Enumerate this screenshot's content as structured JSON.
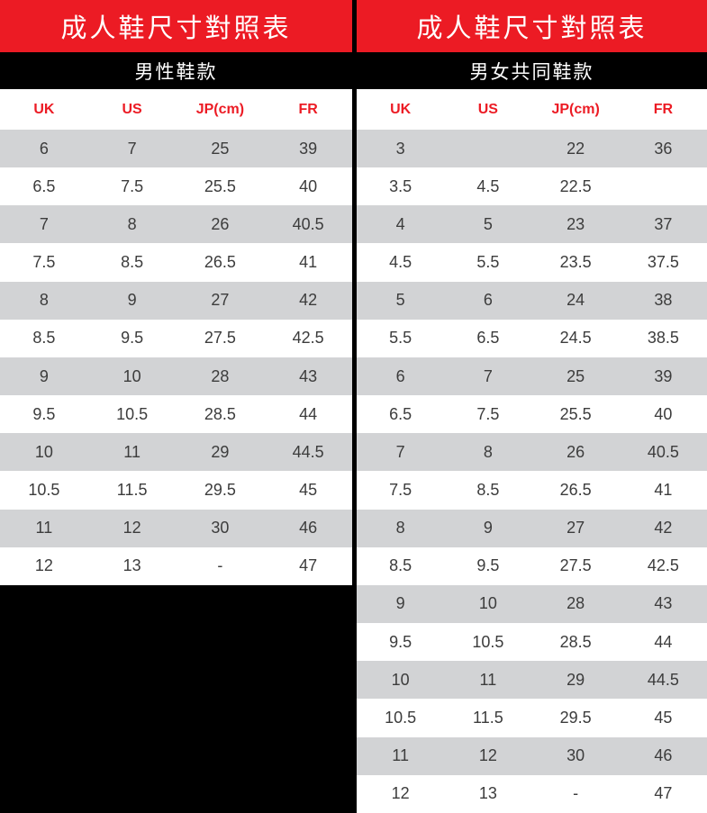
{
  "colors": {
    "accent_red": "#EC1B24",
    "row_gray": "#D2D3D5",
    "band_black": "#000000",
    "cell_text": "#3c3c3c"
  },
  "chart_data": [
    {
      "type": "table",
      "title": "成人鞋尺寸對照表",
      "subtitle": "男性鞋款",
      "columns": [
        "UK",
        "US",
        "JP(cm)",
        "FR"
      ],
      "rows": [
        [
          "6",
          "7",
          "25",
          "39"
        ],
        [
          "6.5",
          "7.5",
          "25.5",
          "40"
        ],
        [
          "7",
          "8",
          "26",
          "40.5"
        ],
        [
          "7.5",
          "8.5",
          "26.5",
          "41"
        ],
        [
          "8",
          "9",
          "27",
          "42"
        ],
        [
          "8.5",
          "9.5",
          "27.5",
          "42.5"
        ],
        [
          "9",
          "10",
          "28",
          "43"
        ],
        [
          "9.5",
          "10.5",
          "28.5",
          "44"
        ],
        [
          "10",
          "11",
          "29",
          "44.5"
        ],
        [
          "10.5",
          "11.5",
          "29.5",
          "45"
        ],
        [
          "11",
          "12",
          "30",
          "46"
        ],
        [
          "12",
          "13",
          "-",
          "47"
        ]
      ]
    },
    {
      "type": "table",
      "title": "成人鞋尺寸對照表",
      "subtitle": "男女共同鞋款",
      "columns": [
        "UK",
        "US",
        "JP(cm)",
        "FR"
      ],
      "rows": [
        [
          "3",
          "",
          "22",
          "36"
        ],
        [
          "3.5",
          "4.5",
          "22.5",
          ""
        ],
        [
          "4",
          "5",
          "23",
          "37"
        ],
        [
          "4.5",
          "5.5",
          "23.5",
          "37.5"
        ],
        [
          "5",
          "6",
          "24",
          "38"
        ],
        [
          "5.5",
          "6.5",
          "24.5",
          "38.5"
        ],
        [
          "6",
          "7",
          "25",
          "39"
        ],
        [
          "6.5",
          "7.5",
          "25.5",
          "40"
        ],
        [
          "7",
          "8",
          "26",
          "40.5"
        ],
        [
          "7.5",
          "8.5",
          "26.5",
          "41"
        ],
        [
          "8",
          "9",
          "27",
          "42"
        ],
        [
          "8.5",
          "9.5",
          "27.5",
          "42.5"
        ],
        [
          "9",
          "10",
          "28",
          "43"
        ],
        [
          "9.5",
          "10.5",
          "28.5",
          "44"
        ],
        [
          "10",
          "11",
          "29",
          "44.5"
        ],
        [
          "10.5",
          "11.5",
          "29.5",
          "45"
        ],
        [
          "11",
          "12",
          "30",
          "46"
        ],
        [
          "12",
          "13",
          "-",
          "47"
        ]
      ]
    }
  ]
}
